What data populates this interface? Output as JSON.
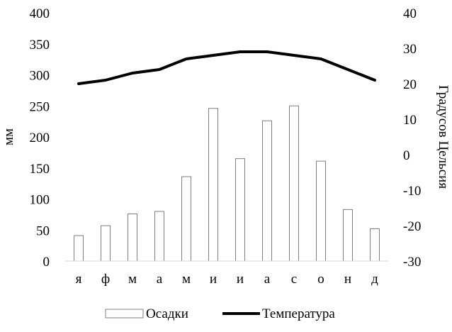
{
  "chart_data": {
    "type": "bar+line",
    "categories": [
      "я",
      "ф",
      "м",
      "а",
      "м",
      "и",
      "и",
      "а",
      "с",
      "о",
      "н",
      "д"
    ],
    "series": [
      {
        "name": "Осадки",
        "type": "bar",
        "axis": "left",
        "values": [
          41,
          57,
          76,
          80,
          136,
          246,
          165,
          226,
          250,
          161,
          83,
          52
        ]
      },
      {
        "name": "Температура",
        "type": "line",
        "axis": "right",
        "values": [
          20,
          21,
          23,
          24,
          27,
          28,
          29,
          29,
          28,
          27,
          24,
          21
        ]
      }
    ],
    "left_axis": {
      "label": "мм",
      "min": 0,
      "max": 400,
      "step": 50,
      "ticks": [
        "0",
        "50",
        "100",
        "150",
        "200",
        "250",
        "300",
        "350",
        "400"
      ]
    },
    "right_axis": {
      "label": "Градусов Цельсия",
      "min": -30,
      "max": 40,
      "step": 10,
      "ticks": [
        "-30",
        "-20",
        "-10",
        "0",
        "10",
        "20",
        "30",
        "40"
      ]
    },
    "legend": {
      "placement": "bottom",
      "items": [
        "Осадки",
        "Температура"
      ]
    },
    "grid": false,
    "colors": {
      "bar_fill": "#ffffff",
      "bar_stroke": "#7f7f7f",
      "line": "#000000",
      "axis": "#d9d9d9"
    }
  }
}
